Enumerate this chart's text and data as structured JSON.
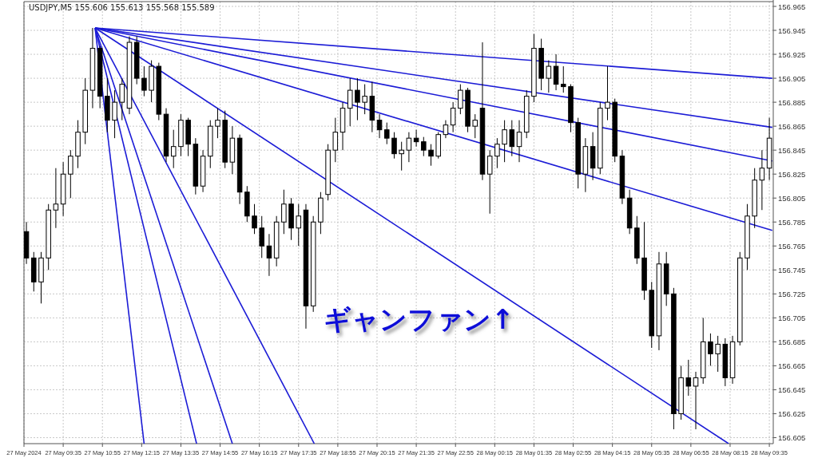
{
  "chart_data": {
    "type": "candlestick",
    "title": "USDJPY,M5 155.606 155.613 155.568 155.589",
    "annotations": [
      "ギャンファン↑"
    ],
    "color": "#000000",
    "x": [
      "2024-05-27T08:20",
      "2024-05-27T08:35",
      "2024-05-27T08:50",
      "2024-05-27T09:05",
      "2024-05-27T09:20",
      "2024-05-27T09:35",
      "2024-05-27T09:50",
      "2024-05-27T10:05",
      "2024-05-27T10:20",
      "2024-05-27T10:35",
      "2024-05-27T10:50",
      "2024-05-27T11:05",
      "2024-05-27T11:20",
      "2024-05-27T11:35",
      "2024-05-27T11:50",
      "2024-05-27T12:05",
      "2024-05-27T12:20",
      "2024-05-27T12:35",
      "2024-05-27T12:50",
      "2024-05-27T13:05",
      "2024-05-27T13:20",
      "2024-05-27T13:35",
      "2024-05-27T13:50",
      "2024-05-27T14:05",
      "2024-05-27T14:20",
      "2024-05-27T14:35",
      "2024-05-27T14:50",
      "2024-05-27T15:05",
      "2024-05-27T15:20",
      "2024-05-27T15:35",
      "2024-05-27T15:50",
      "2024-05-27T16:05",
      "2024-05-27T16:20",
      "2024-05-27T16:35",
      "2024-05-27T16:50",
      "2024-05-27T17:05",
      "2024-05-27T17:20",
      "2024-05-27T17:35",
      "2024-05-27T17:50",
      "2024-05-27T18:05",
      "2024-05-27T18:20",
      "2024-05-27T18:35",
      "2024-05-27T18:50",
      "2024-05-27T19:05",
      "2024-05-27T19:20",
      "2024-05-27T19:35",
      "2024-05-27T19:50",
      "2024-05-27T20:05",
      "2024-05-27T20:20",
      "2024-05-27T20:35",
      "2024-05-27T20:50",
      "2024-05-27T21:05",
      "2024-05-27T21:20",
      "2024-05-27T21:35",
      "2024-05-27T21:50",
      "2024-05-27T22:05",
      "2024-05-27T22:20",
      "2024-05-27T22:35",
      "2024-05-27T22:50",
      "2024-05-27T23:05",
      "2024-05-27T23:20",
      "2024-05-27T23:35",
      "2024-05-27T23:50",
      "2024-05-28T00:05",
      "2024-05-28T00:20",
      "2024-05-28T00:35",
      "2024-05-28T00:50",
      "2024-05-28T01:05",
      "2024-05-28T01:20",
      "2024-05-28T01:35",
      "2024-05-28T01:50",
      "2024-05-28T02:05",
      "2024-05-28T02:20",
      "2024-05-28T02:35",
      "2024-05-28T02:50",
      "2024-05-28T03:05",
      "2024-05-28T03:20",
      "2024-05-28T03:35",
      "2024-05-28T03:50",
      "2024-05-28T04:05",
      "2024-05-28T04:20",
      "2024-05-28T04:35",
      "2024-05-28T04:50",
      "2024-05-28T05:05",
      "2024-05-28T05:20",
      "2024-05-28T05:35",
      "2024-05-28T05:50",
      "2024-05-28T06:05",
      "2024-05-28T06:20",
      "2024-05-28T06:35",
      "2024-05-28T06:50",
      "2024-05-28T07:05",
      "2024-05-28T07:20",
      "2024-05-28T07:35",
      "2024-05-28T07:50",
      "2024-05-28T08:05",
      "2024-05-28T08:20",
      "2024-05-28T08:35",
      "2024-05-28T08:50",
      "2024-05-28T09:05",
      "2024-05-28T09:20",
      "2024-05-28T09:35"
    ],
    "ohlc": [
      [
        156.777,
        156.785,
        156.75,
        156.755
      ],
      [
        156.755,
        156.76,
        156.727,
        156.735
      ],
      [
        156.735,
        156.76,
        156.717,
        156.755
      ],
      [
        156.755,
        156.8,
        156.745,
        156.795
      ],
      [
        156.795,
        156.83,
        156.78,
        156.8
      ],
      [
        156.8,
        156.835,
        156.79,
        156.825
      ],
      [
        156.825,
        156.845,
        156.805,
        156.84
      ],
      [
        156.84,
        156.87,
        156.83,
        156.86
      ],
      [
        156.86,
        156.905,
        156.85,
        156.895
      ],
      [
        156.895,
        156.947,
        156.88,
        156.93
      ],
      [
        156.93,
        156.932,
        156.88,
        156.89
      ],
      [
        156.89,
        156.905,
        156.86,
        156.87
      ],
      [
        156.87,
        156.895,
        156.855,
        156.885
      ],
      [
        156.885,
        156.905,
        156.87,
        156.9
      ],
      [
        156.88,
        156.94,
        156.875,
        156.935
      ],
      [
        156.935,
        156.94,
        156.9,
        156.905
      ],
      [
        156.905,
        156.915,
        156.89,
        156.895
      ],
      [
        156.895,
        156.92,
        156.885,
        156.915
      ],
      [
        156.915,
        156.918,
        156.87,
        156.875
      ],
      [
        156.875,
        156.88,
        156.835,
        156.84
      ],
      [
        156.84,
        156.862,
        156.83,
        156.848
      ],
      [
        156.848,
        156.875,
        156.84,
        156.87
      ],
      [
        156.87,
        156.872,
        156.84,
        156.85
      ],
      [
        156.85,
        156.855,
        156.808,
        156.815
      ],
      [
        156.815,
        156.845,
        156.81,
        156.84
      ],
      [
        156.84,
        156.87,
        156.83,
        156.865
      ],
      [
        156.865,
        156.88,
        156.855,
        156.87
      ],
      [
        156.87,
        156.878,
        156.83,
        156.835
      ],
      [
        156.835,
        156.865,
        156.825,
        156.855
      ],
      [
        156.855,
        156.858,
        156.8,
        156.81
      ],
      [
        156.81,
        156.815,
        156.785,
        156.79
      ],
      [
        156.79,
        156.8,
        156.775,
        156.78
      ],
      [
        156.78,
        156.79,
        156.755,
        156.765
      ],
      [
        156.765,
        156.775,
        156.74,
        156.755
      ],
      [
        156.755,
        156.79,
        156.748,
        156.785
      ],
      [
        156.785,
        156.812,
        156.775,
        156.8
      ],
      [
        156.8,
        156.805,
        156.77,
        156.78
      ],
      [
        156.78,
        156.8,
        156.765,
        156.79
      ],
      [
        156.795,
        156.8,
        156.696,
        156.715
      ],
      [
        156.715,
        156.79,
        156.71,
        156.785
      ],
      [
        156.785,
        156.81,
        156.775,
        156.805
      ],
      [
        156.808,
        156.85,
        156.803,
        156.845
      ],
      [
        156.845,
        156.872,
        156.835,
        156.86
      ],
      [
        156.86,
        156.885,
        156.845,
        156.88
      ],
      [
        156.88,
        156.905,
        156.865,
        156.895
      ],
      [
        156.895,
        156.905,
        156.87,
        156.885
      ],
      [
        156.885,
        156.9,
        156.875,
        156.89
      ],
      [
        156.89,
        156.902,
        156.86,
        156.87
      ],
      [
        156.87,
        156.875,
        156.855,
        156.862
      ],
      [
        156.862,
        156.868,
        156.85,
        156.855
      ],
      [
        156.855,
        156.86,
        156.838,
        156.842
      ],
      [
        156.842,
        156.852,
        156.828,
        156.845
      ],
      [
        156.845,
        156.86,
        156.835,
        156.855
      ],
      [
        156.855,
        156.862,
        156.848,
        156.852
      ],
      [
        156.852,
        156.856,
        156.84,
        156.845
      ],
      [
        156.845,
        156.85,
        156.832,
        156.84
      ],
      [
        156.84,
        156.86,
        156.838,
        156.858
      ],
      [
        156.858,
        156.87,
        156.855,
        156.866
      ],
      [
        156.866,
        156.885,
        156.86,
        156.88
      ],
      [
        156.88,
        156.9,
        156.875,
        156.895
      ],
      [
        156.895,
        156.897,
        156.86,
        156.865
      ],
      [
        156.865,
        156.875,
        156.855,
        156.87
      ],
      [
        156.88,
        156.935,
        156.82,
        156.825
      ],
      [
        156.825,
        156.845,
        156.792,
        156.84
      ],
      [
        156.84,
        156.855,
        156.83,
        156.85
      ],
      [
        156.85,
        156.87,
        156.835,
        156.862
      ],
      [
        156.862,
        156.87,
        156.84,
        156.848
      ],
      [
        156.848,
        156.87,
        156.835,
        156.86
      ],
      [
        156.86,
        156.895,
        156.855,
        156.89
      ],
      [
        156.89,
        156.942,
        156.885,
        156.93
      ],
      [
        156.93,
        156.938,
        156.895,
        156.905
      ],
      [
        156.905,
        156.92,
        156.893,
        156.915
      ],
      [
        156.915,
        156.925,
        156.895,
        156.9
      ],
      [
        156.9,
        156.915,
        156.893,
        156.898
      ],
      [
        156.898,
        156.9,
        156.86,
        156.868
      ],
      [
        156.868,
        156.872,
        156.813,
        156.825
      ],
      [
        156.825,
        156.855,
        156.81,
        156.848
      ],
      [
        156.848,
        156.86,
        156.82,
        156.83
      ],
      [
        156.83,
        156.885,
        156.825,
        156.88
      ],
      [
        156.88,
        156.915,
        156.87,
        156.885
      ],
      [
        156.885,
        156.888,
        156.835,
        156.84
      ],
      [
        156.84,
        156.845,
        156.8,
        156.805
      ],
      [
        156.805,
        156.812,
        156.775,
        156.78
      ],
      [
        156.78,
        156.79,
        156.75,
        156.755
      ],
      [
        156.755,
        156.785,
        156.72,
        156.728
      ],
      [
        156.728,
        156.735,
        156.68,
        156.69
      ],
      [
        156.69,
        156.76,
        156.678,
        156.75
      ],
      [
        156.75,
        156.76,
        156.715,
        156.725
      ],
      [
        156.725,
        156.73,
        156.612,
        156.625
      ],
      [
        156.625,
        156.665,
        156.62,
        156.655
      ],
      [
        156.655,
        156.67,
        156.64,
        156.648
      ],
      [
        156.648,
        156.66,
        156.612,
        156.655
      ],
      [
        156.655,
        156.705,
        156.65,
        156.685
      ],
      [
        156.685,
        156.692,
        156.665,
        156.675
      ],
      [
        156.675,
        156.69,
        156.66,
        156.683
      ],
      [
        156.683,
        156.688,
        156.648,
        156.655
      ],
      [
        156.655,
        156.69,
        156.65,
        156.685
      ],
      [
        156.685,
        156.76,
        156.682,
        156.755
      ],
      [
        156.755,
        156.8,
        156.745,
        156.79
      ],
      [
        156.79,
        156.83,
        156.78,
        156.82
      ],
      [
        156.82,
        156.845,
        156.795,
        156.83
      ],
      [
        156.83,
        156.872,
        156.82,
        156.855
      ]
    ],
    "series": [
      {
        "type": "line",
        "color": "#1c1cd6",
        "x": [
          "2024-05-27T10:40",
          "2024-05-28T09:41"
        ],
        "values": [
          156.947,
          156.905
        ]
      },
      {
        "type": "line",
        "color": "#1c1cd6",
        "x": [
          "2024-05-27T10:40",
          "2024-05-28T09:41"
        ],
        "values": [
          156.947,
          156.864
        ]
      },
      {
        "type": "line",
        "color": "#1c1cd6",
        "x": [
          "2024-05-27T10:40",
          "2024-05-28T09:41"
        ],
        "values": [
          156.947,
          156.836
        ]
      },
      {
        "type": "line",
        "color": "#1c1cd6",
        "x": [
          "2024-05-27T10:40",
          "2024-05-28T09:41"
        ],
        "values": [
          156.947,
          156.778
        ]
      },
      {
        "type": "line",
        "color": "#1c1cd6",
        "x": [
          "2024-05-27T10:40",
          "2024-05-28T08:12"
        ],
        "values": [
          156.947,
          156.6
        ]
      },
      {
        "type": "line",
        "color": "#1c1cd6",
        "x": [
          "2024-05-27T10:40",
          "2024-05-27T18:07"
        ],
        "values": [
          156.947,
          156.6
        ]
      },
      {
        "type": "line",
        "color": "#1c1cd6",
        "x": [
          "2024-05-27T10:40",
          "2024-05-27T15:20"
        ],
        "values": [
          156.947,
          156.6
        ]
      },
      {
        "type": "line",
        "color": "#1c1cd6",
        "x": [
          "2024-05-27T10:40",
          "2024-05-27T14:07"
        ],
        "values": [
          156.947,
          156.6
        ]
      },
      {
        "type": "line",
        "color": "#1c1cd6",
        "x": [
          "2024-05-27T10:40",
          "2024-05-27T12:20"
        ],
        "values": [
          156.947,
          156.6
        ]
      }
    ],
    "xlim": [
      "2024-05-27T08:15",
      "2024-05-28T09:43"
    ],
    "xticks": [
      {
        "value": "2024-05-27T08:15",
        "label": "27 May 2024"
      },
      {
        "value": "2024-05-27T09:35",
        "label": "27 May 09:35"
      },
      {
        "value": "2024-05-27T10:55",
        "label": "27 May 10:55"
      },
      {
        "value": "2024-05-27T12:15",
        "label": "27 May 12:15"
      },
      {
        "value": "2024-05-27T13:35",
        "label": "27 May 13:35"
      },
      {
        "value": "2024-05-27T14:55",
        "label": "27 May 14:55"
      },
      {
        "value": "2024-05-27T16:15",
        "label": "27 May 16:15"
      },
      {
        "value": "2024-05-27T17:35",
        "label": "27 May 17:35"
      },
      {
        "value": "2024-05-27T18:55",
        "label": "27 May 18:55"
      },
      {
        "value": "2024-05-27T20:15",
        "label": "27 May 20:15"
      },
      {
        "value": "2024-05-27T21:35",
        "label": "27 May 21:35"
      },
      {
        "value": "2024-05-27T22:55",
        "label": "27 May 22:55"
      },
      {
        "value": "2024-05-28T00:15",
        "label": "28 May 00:15"
      },
      {
        "value": "2024-05-28T01:35",
        "label": "28 May 01:35"
      },
      {
        "value": "2024-05-28T02:55",
        "label": "28 May 02:55"
      },
      {
        "value": "2024-05-28T04:15",
        "label": "28 May 04:15"
      },
      {
        "value": "2024-05-28T05:35",
        "label": "28 May 05:35"
      },
      {
        "value": "2024-05-28T06:55",
        "label": "28 May 06:55"
      },
      {
        "value": "2024-05-28T08:15",
        "label": "28 May 08:15"
      },
      {
        "value": "2024-05-28T09:35",
        "label": "28 May 09:35"
      }
    ],
    "ylim": [
      156.6,
      156.969
    ],
    "yticks": [
      156.605,
      156.625,
      156.645,
      156.665,
      156.685,
      156.705,
      156.725,
      156.745,
      156.765,
      156.785,
      156.805,
      156.825,
      156.845,
      156.865,
      156.885,
      156.905,
      156.925,
      156.945,
      156.965
    ],
    "grid": true
  }
}
